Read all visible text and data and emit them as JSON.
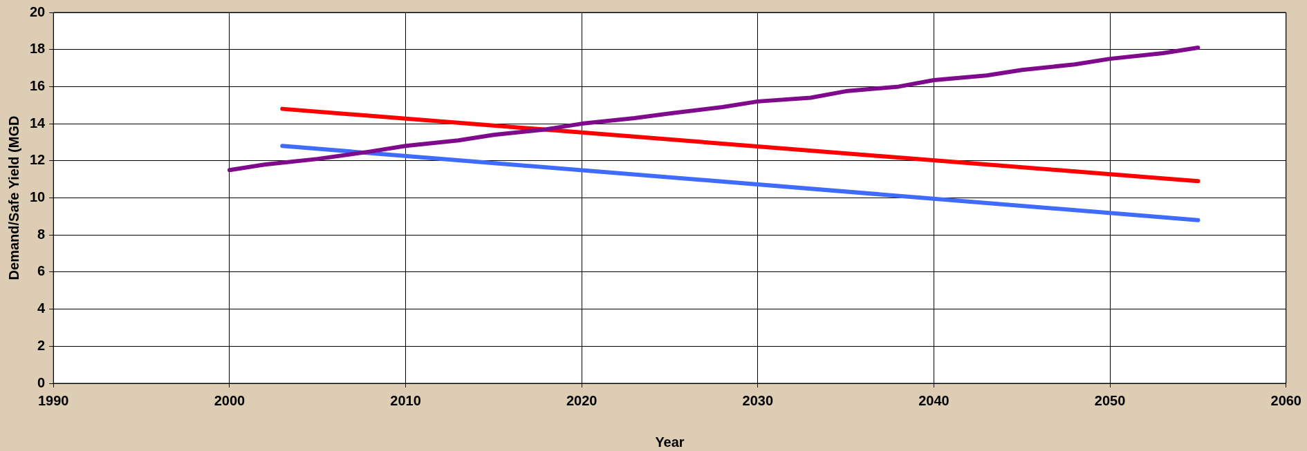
{
  "chart_data": {
    "type": "line",
    "xlabel": "Year",
    "ylabel": "Demand/Safe Yield (MGD",
    "xlim": [
      1990,
      2060
    ],
    "xticks": [
      1990,
      2000,
      2010,
      2020,
      2030,
      2040,
      2050,
      2060
    ],
    "ylim": [
      0,
      20
    ],
    "yticks": [
      0,
      2,
      4,
      6,
      8,
      10,
      12,
      14,
      16,
      18,
      20
    ],
    "grid": true,
    "legend": false,
    "marker": "none",
    "line_style": "solid",
    "series": [
      {
        "color": "#800a8c",
        "x": [
          2000,
          2002,
          2005,
          2008,
          2010,
          2013,
          2015,
          2018,
          2020,
          2023,
          2025,
          2028,
          2030,
          2033,
          2035,
          2038,
          2040,
          2043,
          2045,
          2048,
          2050,
          2053,
          2055
        ],
        "values": [
          11.5,
          11.8,
          12.1,
          12.5,
          12.8,
          13.1,
          13.4,
          13.7,
          14.0,
          14.3,
          14.55,
          14.9,
          15.2,
          15.4,
          15.75,
          16.0,
          16.35,
          16.6,
          16.9,
          17.2,
          17.5,
          17.8,
          18.1
        ]
      },
      {
        "color": "#ff0000",
        "x": [
          2003,
          2055
        ],
        "values": [
          14.8,
          10.9
        ]
      },
      {
        "color": "#3f6bff",
        "x": [
          2003,
          2055
        ],
        "values": [
          12.8,
          8.8
        ]
      }
    ]
  }
}
